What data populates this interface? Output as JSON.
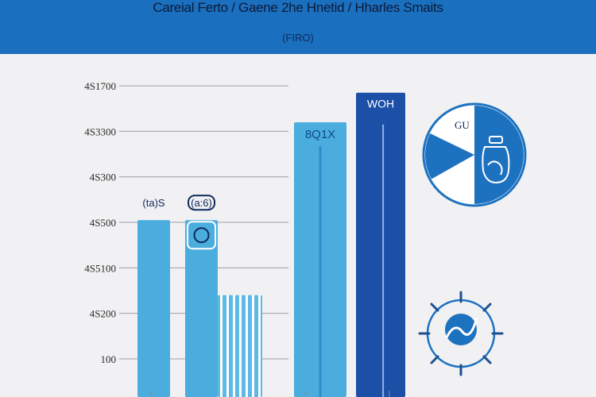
{
  "header": {
    "title": "Careial Ferto / Gaene 2he Hnetid / Hharles Smaits",
    "subtitle": "(FIRO)"
  },
  "colors": {
    "header": "#1a6fbe",
    "bar_light": "#4badde",
    "bar_dark": "#1c4fa6",
    "bar_striped": "#5cb8e4",
    "grid": "#9aa0a8",
    "icon_blue": "#1d72c0"
  },
  "chart_data": {
    "type": "bar",
    "title": "Careial Ferto / Gaene 2he Hnetid / Hharles Smaits",
    "subtitle": "(FIRO)",
    "xlabel": "",
    "ylabel": "",
    "grid": true,
    "y_tick_labels": [
      "4S1700",
      "4S3300",
      "4S300",
      "4S500",
      "4S5100",
      "4S200",
      "100"
    ],
    "y_tick_values": [
      0,
      1,
      2,
      3,
      4,
      5,
      6
    ],
    "ylim": [
      0,
      6.7
    ],
    "bars": [
      {
        "name": "bar-1",
        "value": 3.05,
        "style": "light",
        "label": "(ta)S"
      },
      {
        "name": "bar-2",
        "value": 3.05,
        "style": "light",
        "label": "(a:6)"
      },
      {
        "name": "bar-3",
        "value": 1.4,
        "style": "striped",
        "label": ""
      },
      {
        "name": "bar-4",
        "value": 5.2,
        "style": "light",
        "label": "8Q1X"
      },
      {
        "name": "bar-5",
        "value": 5.85,
        "style": "dark",
        "label": "WOH"
      }
    ]
  },
  "icons": {
    "pie_badge": {
      "name": "pie-chart-icon",
      "label": "GU"
    },
    "jar": {
      "name": "jar-icon"
    },
    "globe_compass": {
      "name": "globe-compass-icon"
    },
    "bar2_badge": {
      "name": "shield-badge-icon"
    }
  }
}
